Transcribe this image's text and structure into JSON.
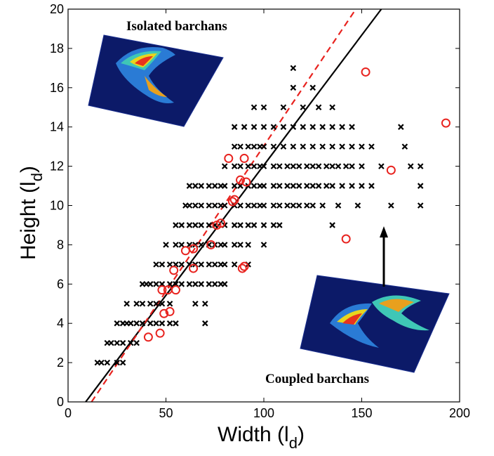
{
  "chart_data": {
    "type": "scatter",
    "xlim": [
      0,
      200
    ],
    "ylim": [
      0,
      20
    ],
    "xticks": [
      0,
      50,
      100,
      150,
      200
    ],
    "yticks": [
      0,
      2,
      4,
      6,
      8,
      10,
      12,
      14,
      16,
      18,
      20
    ],
    "grid": false,
    "xlabel": "Width (l",
    "xlabel_sub": "d",
    "xlabel_end": ")",
    "ylabel": "Height (l",
    "ylabel_sub": "d",
    "ylabel_end": ")",
    "annotations": {
      "isolated": "Isolated barchans",
      "coupled": "Coupled barchans"
    },
    "colors": {
      "crosses": "#000000",
      "circles": "#e8231f",
      "fit_solid": "#000000",
      "fit_dashed": "#e8231f"
    },
    "series": [
      {
        "marker": "x",
        "points": [
          [
            15,
            2
          ],
          [
            17,
            2
          ],
          [
            20,
            2
          ],
          [
            25,
            2
          ],
          [
            28,
            2
          ],
          [
            20,
            3
          ],
          [
            22,
            3
          ],
          [
            25,
            3
          ],
          [
            28,
            3
          ],
          [
            32,
            3
          ],
          [
            35,
            3
          ],
          [
            25,
            4
          ],
          [
            28,
            4
          ],
          [
            30,
            4
          ],
          [
            32,
            4
          ],
          [
            35,
            4
          ],
          [
            38,
            4
          ],
          [
            42,
            4
          ],
          [
            45,
            4
          ],
          [
            48,
            4
          ],
          [
            52,
            4
          ],
          [
            55,
            4
          ],
          [
            70,
            4
          ],
          [
            30,
            5
          ],
          [
            35,
            5
          ],
          [
            38,
            5
          ],
          [
            42,
            5
          ],
          [
            45,
            5
          ],
          [
            48,
            5
          ],
          [
            52,
            5
          ],
          [
            65,
            5
          ],
          [
            70,
            5
          ],
          [
            38,
            6
          ],
          [
            40,
            6
          ],
          [
            42,
            6
          ],
          [
            45,
            6
          ],
          [
            48,
            6
          ],
          [
            52,
            6
          ],
          [
            55,
            6
          ],
          [
            58,
            6
          ],
          [
            62,
            6
          ],
          [
            65,
            6
          ],
          [
            68,
            6
          ],
          [
            72,
            6
          ],
          [
            75,
            6
          ],
          [
            78,
            6
          ],
          [
            80,
            6
          ],
          [
            45,
            7
          ],
          [
            48,
            7
          ],
          [
            52,
            7
          ],
          [
            55,
            7
          ],
          [
            58,
            7
          ],
          [
            62,
            7
          ],
          [
            65,
            7
          ],
          [
            68,
            7
          ],
          [
            72,
            7
          ],
          [
            75,
            7
          ],
          [
            78,
            7
          ],
          [
            80,
            7
          ],
          [
            85,
            7
          ],
          [
            92,
            7
          ],
          [
            50,
            8
          ],
          [
            55,
            8
          ],
          [
            58,
            8
          ],
          [
            62,
            8
          ],
          [
            65,
            8
          ],
          [
            68,
            8
          ],
          [
            72,
            8
          ],
          [
            75,
            8
          ],
          [
            78,
            8
          ],
          [
            80,
            8
          ],
          [
            85,
            8
          ],
          [
            88,
            8
          ],
          [
            92,
            8
          ],
          [
            100,
            8
          ],
          [
            55,
            9
          ],
          [
            58,
            9
          ],
          [
            62,
            9
          ],
          [
            65,
            9
          ],
          [
            68,
            9
          ],
          [
            72,
            9
          ],
          [
            75,
            9
          ],
          [
            80,
            9
          ],
          [
            85,
            9
          ],
          [
            88,
            9
          ],
          [
            92,
            9
          ],
          [
            95,
            9
          ],
          [
            100,
            9
          ],
          [
            105,
            9
          ],
          [
            108,
            9
          ],
          [
            135,
            9
          ],
          [
            60,
            10
          ],
          [
            62,
            10
          ],
          [
            65,
            10
          ],
          [
            68,
            10
          ],
          [
            72,
            10
          ],
          [
            75,
            10
          ],
          [
            78,
            10
          ],
          [
            80,
            10
          ],
          [
            85,
            10
          ],
          [
            88,
            10
          ],
          [
            92,
            10
          ],
          [
            95,
            10
          ],
          [
            98,
            10
          ],
          [
            100,
            10
          ],
          [
            105,
            10
          ],
          [
            108,
            10
          ],
          [
            112,
            10
          ],
          [
            115,
            10
          ],
          [
            118,
            10
          ],
          [
            122,
            10
          ],
          [
            125,
            10
          ],
          [
            130,
            10
          ],
          [
            138,
            10
          ],
          [
            148,
            10
          ],
          [
            165,
            10
          ],
          [
            180,
            10
          ],
          [
            62,
            11
          ],
          [
            65,
            11
          ],
          [
            68,
            11
          ],
          [
            72,
            11
          ],
          [
            75,
            11
          ],
          [
            78,
            11
          ],
          [
            80,
            11
          ],
          [
            85,
            11
          ],
          [
            88,
            11
          ],
          [
            92,
            11
          ],
          [
            95,
            11
          ],
          [
            98,
            11
          ],
          [
            100,
            11
          ],
          [
            105,
            11
          ],
          [
            108,
            11
          ],
          [
            112,
            11
          ],
          [
            115,
            11
          ],
          [
            118,
            11
          ],
          [
            122,
            11
          ],
          [
            125,
            11
          ],
          [
            128,
            11
          ],
          [
            132,
            11
          ],
          [
            135,
            11
          ],
          [
            140,
            11
          ],
          [
            145,
            11
          ],
          [
            150,
            11
          ],
          [
            155,
            11
          ],
          [
            180,
            11
          ],
          [
            80,
            12
          ],
          [
            85,
            12
          ],
          [
            88,
            12
          ],
          [
            92,
            12
          ],
          [
            95,
            12
          ],
          [
            98,
            12
          ],
          [
            100,
            12
          ],
          [
            105,
            12
          ],
          [
            108,
            12
          ],
          [
            112,
            12
          ],
          [
            115,
            12
          ],
          [
            118,
            12
          ],
          [
            122,
            12
          ],
          [
            125,
            12
          ],
          [
            128,
            12
          ],
          [
            132,
            12
          ],
          [
            135,
            12
          ],
          [
            138,
            12
          ],
          [
            142,
            12
          ],
          [
            145,
            12
          ],
          [
            150,
            12
          ],
          [
            160,
            12
          ],
          [
            175,
            12
          ],
          [
            180,
            12
          ],
          [
            85,
            13
          ],
          [
            88,
            13
          ],
          [
            92,
            13
          ],
          [
            95,
            13
          ],
          [
            98,
            13
          ],
          [
            100,
            13
          ],
          [
            105,
            13
          ],
          [
            110,
            13
          ],
          [
            115,
            13
          ],
          [
            120,
            13
          ],
          [
            125,
            13
          ],
          [
            130,
            13
          ],
          [
            135,
            13
          ],
          [
            140,
            13
          ],
          [
            145,
            13
          ],
          [
            150,
            13
          ],
          [
            155,
            13
          ],
          [
            172,
            13
          ],
          [
            85,
            14
          ],
          [
            90,
            14
          ],
          [
            95,
            14
          ],
          [
            100,
            14
          ],
          [
            105,
            14
          ],
          [
            110,
            14
          ],
          [
            115,
            14
          ],
          [
            120,
            14
          ],
          [
            125,
            14
          ],
          [
            130,
            14
          ],
          [
            135,
            14
          ],
          [
            140,
            14
          ],
          [
            145,
            14
          ],
          [
            170,
            14
          ],
          [
            95,
            15
          ],
          [
            100,
            15
          ],
          [
            110,
            15
          ],
          [
            120,
            15
          ],
          [
            128,
            15
          ],
          [
            135,
            15
          ],
          [
            115,
            16
          ],
          [
            125,
            16
          ],
          [
            115,
            17
          ]
        ]
      },
      {
        "marker": "o",
        "points": [
          [
            41,
            3.3
          ],
          [
            47,
            3.5
          ],
          [
            49,
            4.5
          ],
          [
            52,
            4.6
          ],
          [
            48,
            5.7
          ],
          [
            51,
            5.7
          ],
          [
            55,
            5.7
          ],
          [
            54,
            6.7
          ],
          [
            64,
            6.8
          ],
          [
            60,
            7.7
          ],
          [
            64,
            7.8
          ],
          [
            73,
            8
          ],
          [
            76,
            9
          ],
          [
            78,
            9.1
          ],
          [
            89,
            6.8
          ],
          [
            90,
            6.9
          ],
          [
            84,
            10.2
          ],
          [
            85,
            10.3
          ],
          [
            88,
            11.3
          ],
          [
            91,
            11.2
          ],
          [
            82,
            12.4
          ],
          [
            90,
            12.4
          ],
          [
            142,
            8.3
          ],
          [
            152,
            16.8
          ],
          [
            165,
            11.8
          ],
          [
            193,
            14.2
          ]
        ]
      }
    ],
    "fit_lines": [
      {
        "style": "solid",
        "points": [
          [
            9,
            0
          ],
          [
            160,
            20
          ]
        ]
      },
      {
        "style": "dashed",
        "points": [
          [
            12,
            0
          ],
          [
            147,
            20
          ]
        ]
      }
    ]
  }
}
